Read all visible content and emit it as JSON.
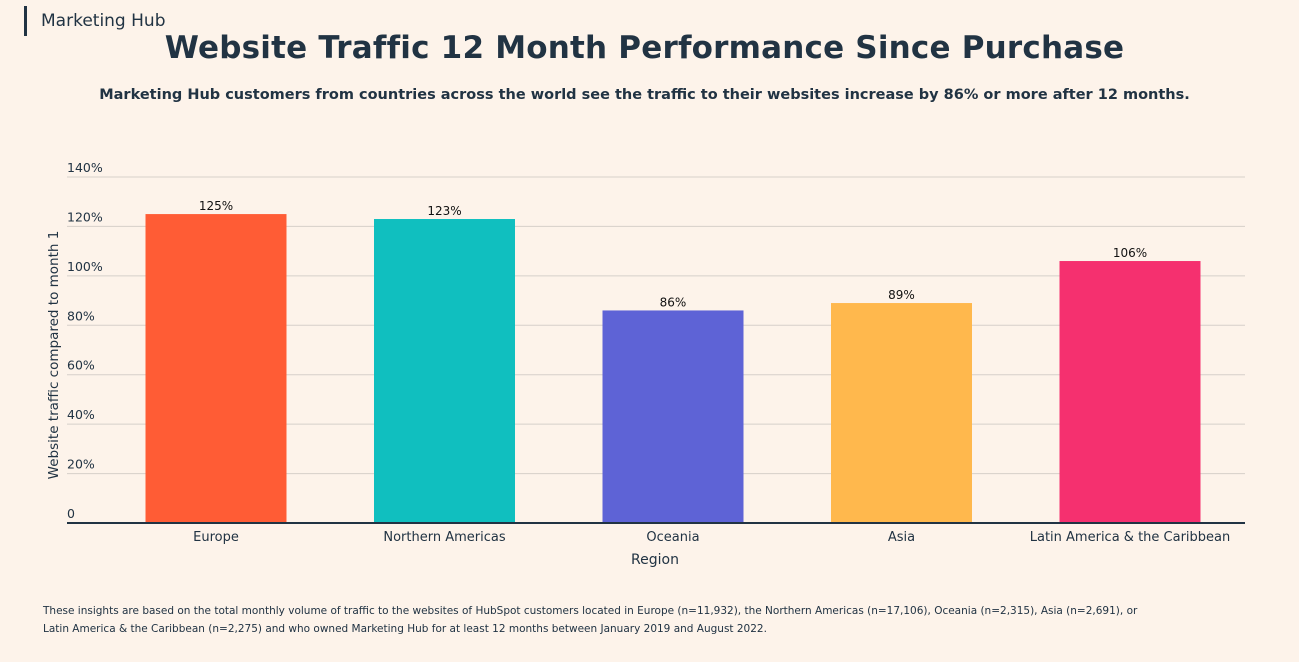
{
  "header": {
    "brand": "Marketing Hub",
    "title": "Website Traffic 12 Month Performance Since Purchase",
    "subtitle": "Marketing Hub customers from countries across the world see the traffic to their websites increase by 86% or more after 12 months."
  },
  "chart_data": {
    "type": "bar",
    "title": "Website Traffic 12 Month Performance Since Purchase",
    "xlabel": "Region",
    "ylabel": "Website traffic compared to month 1",
    "categories": [
      "Europe",
      "Northern Americas",
      "Oceania",
      "Asia",
      "Latin America & the Caribbean"
    ],
    "values": [
      125,
      123,
      86,
      89,
      106
    ],
    "value_labels": [
      "125%",
      "123%",
      "86%",
      "89%",
      "106%"
    ],
    "colors": [
      "#ff5c35",
      "#10bfbf",
      "#5e63d6",
      "#ffb84d",
      "#f5306f"
    ],
    "ylim": [
      0,
      140
    ],
    "yticks": [
      0,
      20,
      40,
      60,
      80,
      100,
      120,
      140
    ],
    "ytick_labels": [
      "0",
      "20%",
      "40%",
      "60%",
      "80%",
      "100%",
      "120%",
      "140%"
    ],
    "grid": true
  },
  "footnote": {
    "line1": "These insights are based on the total monthly volume of traffic to the websites of HubSpot customers located in Europe (n=11,932), the Northern Americas (n=17,106), Oceania (n=2,315), Asia (n=2,691), or",
    "line2": "Latin America & the Caribbean (n=2,275) and who owned Marketing Hub for at least 12 months between January 2019 and August 2022."
  }
}
